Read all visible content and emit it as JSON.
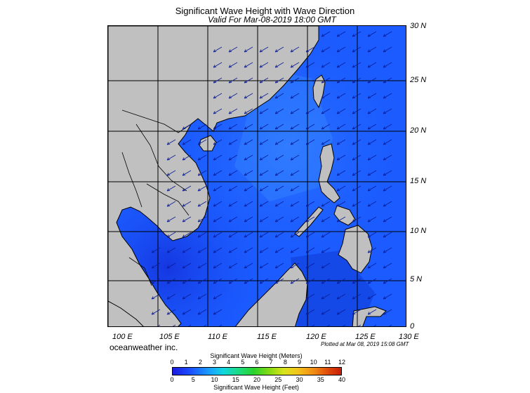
{
  "header": {
    "title": "Significant Wave Height with Wave Direction",
    "subtitle": "Valid For Mar-08-2019 18:00 GMT"
  },
  "map": {
    "lat_labels": [
      "30 N",
      "25 N",
      "20 N",
      "15 N",
      "10 N",
      "5 N",
      "0"
    ],
    "lon_labels": [
      "100 E",
      "105 E",
      "110 E",
      "115 E",
      "120 E",
      "125 E",
      "130 E"
    ],
    "extent": {
      "lon": [
        100,
        130
      ],
      "lat": [
        0,
        30
      ]
    },
    "land_color": "#c0c0c0",
    "sea_color": "#1b5bff",
    "grid_color": "#000000",
    "arrow_color": "#0b1e9a",
    "wave_direction": "from northeast toward southwest"
  },
  "footer": {
    "brand": "oceanweather inc.",
    "plotted": "Plotted at Mar 08, 2019 15:08 GMT"
  },
  "colorbar": {
    "title_meters": "Significant Wave Height (Meters)",
    "title_feet": "Significant Wave Height (Feet)",
    "meters_ticks": [
      "0",
      "1",
      "2",
      "3",
      "4",
      "5",
      "6",
      "7",
      "8",
      "9",
      "10",
      "11",
      "12"
    ],
    "feet_ticks": [
      "0",
      "5",
      "10",
      "15",
      "20",
      "25",
      "30",
      "35",
      "40"
    ]
  }
}
